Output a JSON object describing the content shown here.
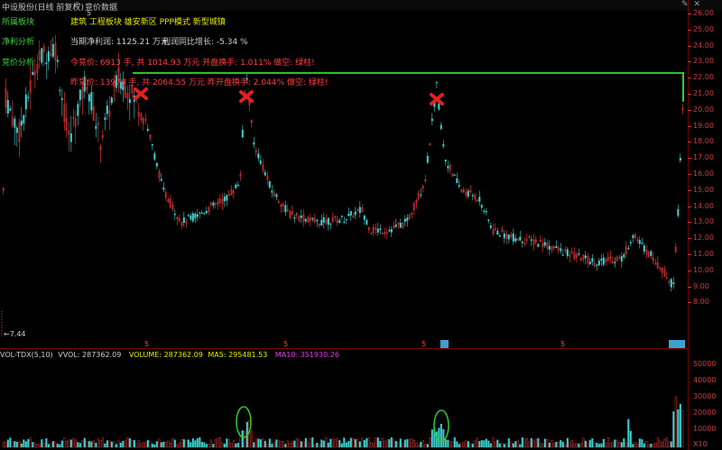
{
  "window": {
    "title": "中设股份(日线 前复权)",
    "tab2": "竞价数据",
    "top_mark": "5"
  },
  "info": {
    "sector_label": "所属板块",
    "sector_values": "建筑  工程板块   雄安新区 PPP模式 新型城镇",
    "profit_label": "净利分析",
    "profit_text": "当期净利润: 1125.21 万元",
    "profit_growth": "利润同比增长: -5.34 %",
    "auction_label": "竞价分析",
    "today_auction": "今竞价: 6913 手,   共 1014.93 万元     开盘换手: 1.011%    做空: 绿柱!",
    "yesterday_auction": "昨竞价: 13978 手,   共 2064.55 万元     昨开盘换手: 2.044%    做空: 绿柱!"
  },
  "price_axis": {
    "labels": [
      "26.00",
      "25.00",
      "24.00",
      "23.00",
      "22.00",
      "21.00",
      "20.00",
      "19.00",
      "18.00",
      "17.00",
      "16.00",
      "15.00",
      "14.00",
      "13.00",
      "12.00",
      "11.00",
      "10.00",
      "9.00",
      "8.00"
    ],
    "min_marker": "←7.44"
  },
  "event_marks": [
    "5",
    "5",
    "5",
    "5"
  ],
  "volume_panel": {
    "indicator": "VOL-TDX(5,10)",
    "vvol": "VVOL: 287362.09",
    "volume": "VOLUME: 287362.09",
    "ma5": "MA5: 295481.53",
    "ma10": "MA10: 351930.26",
    "axis_labels": [
      "50000",
      "40000",
      "30000",
      "20000",
      "10000"
    ],
    "unit": "X10"
  },
  "colors": {
    "up": "#ff3c3c",
    "down": "#3fd0d0",
    "resistance_line": "#2ecc2e",
    "x_mark": "#e02020",
    "circle": "#2ecc2e"
  }
}
